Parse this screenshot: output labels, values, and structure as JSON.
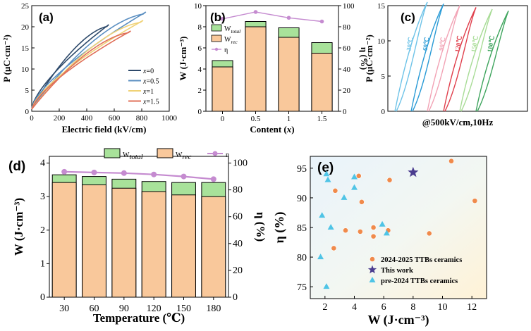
{
  "chart_data": [
    {
      "id": "a",
      "panel_label": "(a)",
      "type": "line",
      "xlabel": "Electric field (kV/cm)",
      "ylabel": "P (μC·cm⁻²)",
      "xlim": [
        0,
        1000
      ],
      "ylim": [
        0,
        25
      ],
      "xticks": [
        0,
        200,
        400,
        600,
        800,
        1000
      ],
      "yticks": [
        0,
        5,
        10,
        15,
        20,
        25
      ],
      "legend_var": "x",
      "series": [
        {
          "name": "0",
          "color": "#2e4a6b",
          "emax": 560,
          "pmax": 20.5,
          "pr": 0.8
        },
        {
          "name": "0.5",
          "color": "#5b8fc1",
          "emax": 830,
          "pmax": 23.5,
          "pr": 0.8
        },
        {
          "name": "1",
          "color": "#f0d276",
          "emax": 810,
          "pmax": 21.5,
          "pr": 0.6
        },
        {
          "name": "1.5",
          "color": "#e0705a",
          "emax": 720,
          "pmax": 19.0,
          "pr": 0.5
        }
      ]
    },
    {
      "id": "b",
      "panel_label": "(b)",
      "type": "bar",
      "xlabel": "Content (x)",
      "ylabel": "W (J·cm⁻³)",
      "y2label": "η (%)",
      "categories": [
        "0",
        "0.5",
        "1",
        "1.5"
      ],
      "ylim": [
        0,
        10
      ],
      "yticks": [
        0,
        2,
        4,
        6,
        8,
        10
      ],
      "y2lim": [
        0,
        100
      ],
      "y2ticks": [
        0,
        20,
        40,
        60,
        80,
        100
      ],
      "series": [
        {
          "name": "W_total",
          "color": "#a8e29a",
          "values": [
            4.8,
            8.5,
            7.9,
            6.5
          ]
        },
        {
          "name": "W_rec",
          "color": "#f9c89b",
          "values": [
            4.2,
            8.0,
            7.0,
            5.5
          ]
        },
        {
          "name": "η",
          "color": "#c58bd0",
          "values": [
            87.5,
            94.0,
            88.5,
            85.0
          ]
        }
      ],
      "legend": [
        "W_total",
        "W_rec",
        "η"
      ]
    },
    {
      "id": "c",
      "panel_label": "(c)",
      "type": "line",
      "annotation": "@500kV/cm,10Hz",
      "series": [
        {
          "name": "30℃",
          "color": "#6ec3e8"
        },
        {
          "name": "60℃",
          "color": "#2a9bd6"
        },
        {
          "name": "90℃",
          "color": "#f2a3b5"
        },
        {
          "name": "120℃",
          "color": "#e0404d"
        },
        {
          "name": "150℃",
          "color": "#a8dc96"
        },
        {
          "name": "180℃",
          "color": "#3fa55e"
        }
      ],
      "ylim": [
        0,
        15
      ],
      "yticks": [
        0,
        5,
        10,
        15
      ]
    },
    {
      "id": "d",
      "panel_label": "(d)",
      "type": "bar",
      "xlabel": "Temperature (℃)",
      "ylabel": "W (J·cm⁻³)",
      "y2label": "η (%)",
      "categories": [
        "30",
        "60",
        "90",
        "120",
        "150",
        "180"
      ],
      "ylim": [
        0,
        4.2
      ],
      "yticks": [
        0,
        1,
        2,
        3,
        4
      ],
      "y2lim": [
        0,
        105
      ],
      "y2ticks": [
        0,
        20,
        40,
        60,
        80,
        100
      ],
      "series": [
        {
          "name": "W_total",
          "color": "#a8e29a",
          "values": [
            3.65,
            3.6,
            3.52,
            3.45,
            3.42,
            3.42
          ]
        },
        {
          "name": "W_rec",
          "color": "#f9c89b",
          "values": [
            3.42,
            3.35,
            3.25,
            3.15,
            3.05,
            3.0
          ]
        },
        {
          "name": "η",
          "color": "#c58bd0",
          "values": [
            93.5,
            93.0,
            92.5,
            91.5,
            90.0,
            88.0
          ]
        }
      ],
      "legend": [
        "W_total",
        "W_rec",
        "η"
      ]
    },
    {
      "id": "e",
      "panel_label": "(e)",
      "type": "scatter",
      "xlabel": "W (J·cm⁻³)",
      "ylabel": "η (%)",
      "xlim": [
        1,
        13
      ],
      "ylim": [
        73,
        97
      ],
      "xticks": [
        2,
        4,
        6,
        8,
        10,
        12
      ],
      "yticks": [
        75,
        80,
        85,
        90,
        95
      ],
      "series": [
        {
          "name": "2024-2025 TTBs ceramics",
          "marker": "circle",
          "color": "#f08a4b",
          "points": [
            [
              2.6,
              81.5
            ],
            [
              2.7,
              91.2
            ],
            [
              3.4,
              84.5
            ],
            [
              4.3,
              93.7
            ],
            [
              4.5,
              89.3
            ],
            [
              4.4,
              84.3
            ],
            [
              5.3,
              85.0
            ],
            [
              5.3,
              83.5
            ],
            [
              6.4,
              93.0
            ],
            [
              6.3,
              84.5
            ],
            [
              9.1,
              84.0
            ],
            [
              10.6,
              96.2
            ],
            [
              12.2,
              89.5
            ]
          ]
        },
        {
          "name": "This work",
          "marker": "star",
          "color": "#4b3d8f",
          "points": [
            [
              8.0,
              94.3
            ]
          ]
        },
        {
          "name": "pre-2024 TTBs ceramics",
          "marker": "triangle",
          "color": "#4fc4e6",
          "points": [
            [
              2.1,
              94.0
            ],
            [
              2.2,
              93.0
            ],
            [
              4.0,
              93.5
            ],
            [
              4.0,
              91.7
            ],
            [
              3.3,
              90.0
            ],
            [
              1.8,
              87.0
            ],
            [
              2.4,
              85.0
            ],
            [
              5.9,
              85.5
            ],
            [
              6.2,
              84.0
            ],
            [
              1.7,
              80.0
            ],
            [
              2.1,
              75.0
            ]
          ]
        }
      ]
    }
  ]
}
